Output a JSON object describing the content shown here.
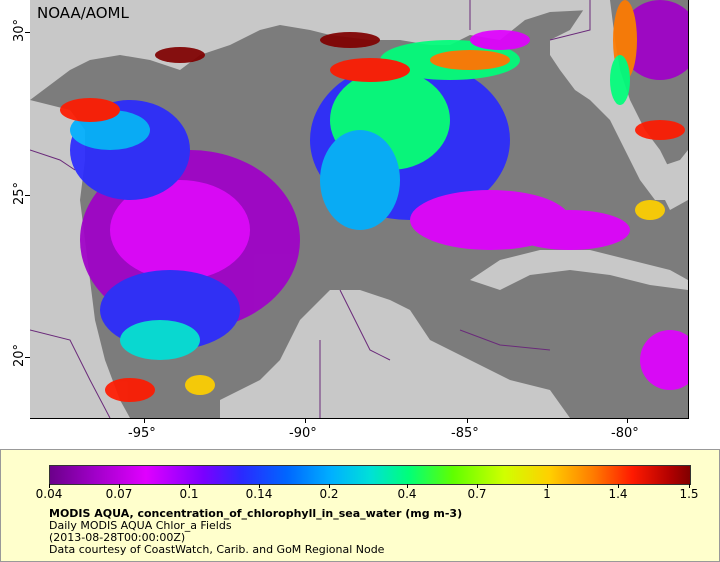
{
  "map": {
    "credit": "NOAA/AOML",
    "lat_labels": [
      "30°",
      "25°",
      "20°"
    ],
    "lon_labels": [
      "-95°",
      "-90°",
      "-85°",
      "-80°"
    ],
    "region": "Gulf of Mexico",
    "colors": {
      "ocean_no_data": "#7c7c7c",
      "land": "#c8c8c8",
      "boundaries": "#6a2a7a"
    }
  },
  "colorbar": {
    "tick_labels": [
      "0.04",
      "0.07",
      "0.1",
      "0.14",
      "0.2",
      "0.4",
      "0.7",
      "1",
      "1.4",
      "1.5"
    ],
    "scale": "log"
  },
  "legend": {
    "title": "MODIS AQUA, concentration_of_chlorophyll_in_sea_water (mg m-3)",
    "line1": "Daily MODIS AQUA Chlor_a Fields",
    "line2": "(2013-08-28T00:00:00Z)",
    "line3": "Data courtesy of CoastWatch, Carib. and GoM Regional Node"
  }
}
